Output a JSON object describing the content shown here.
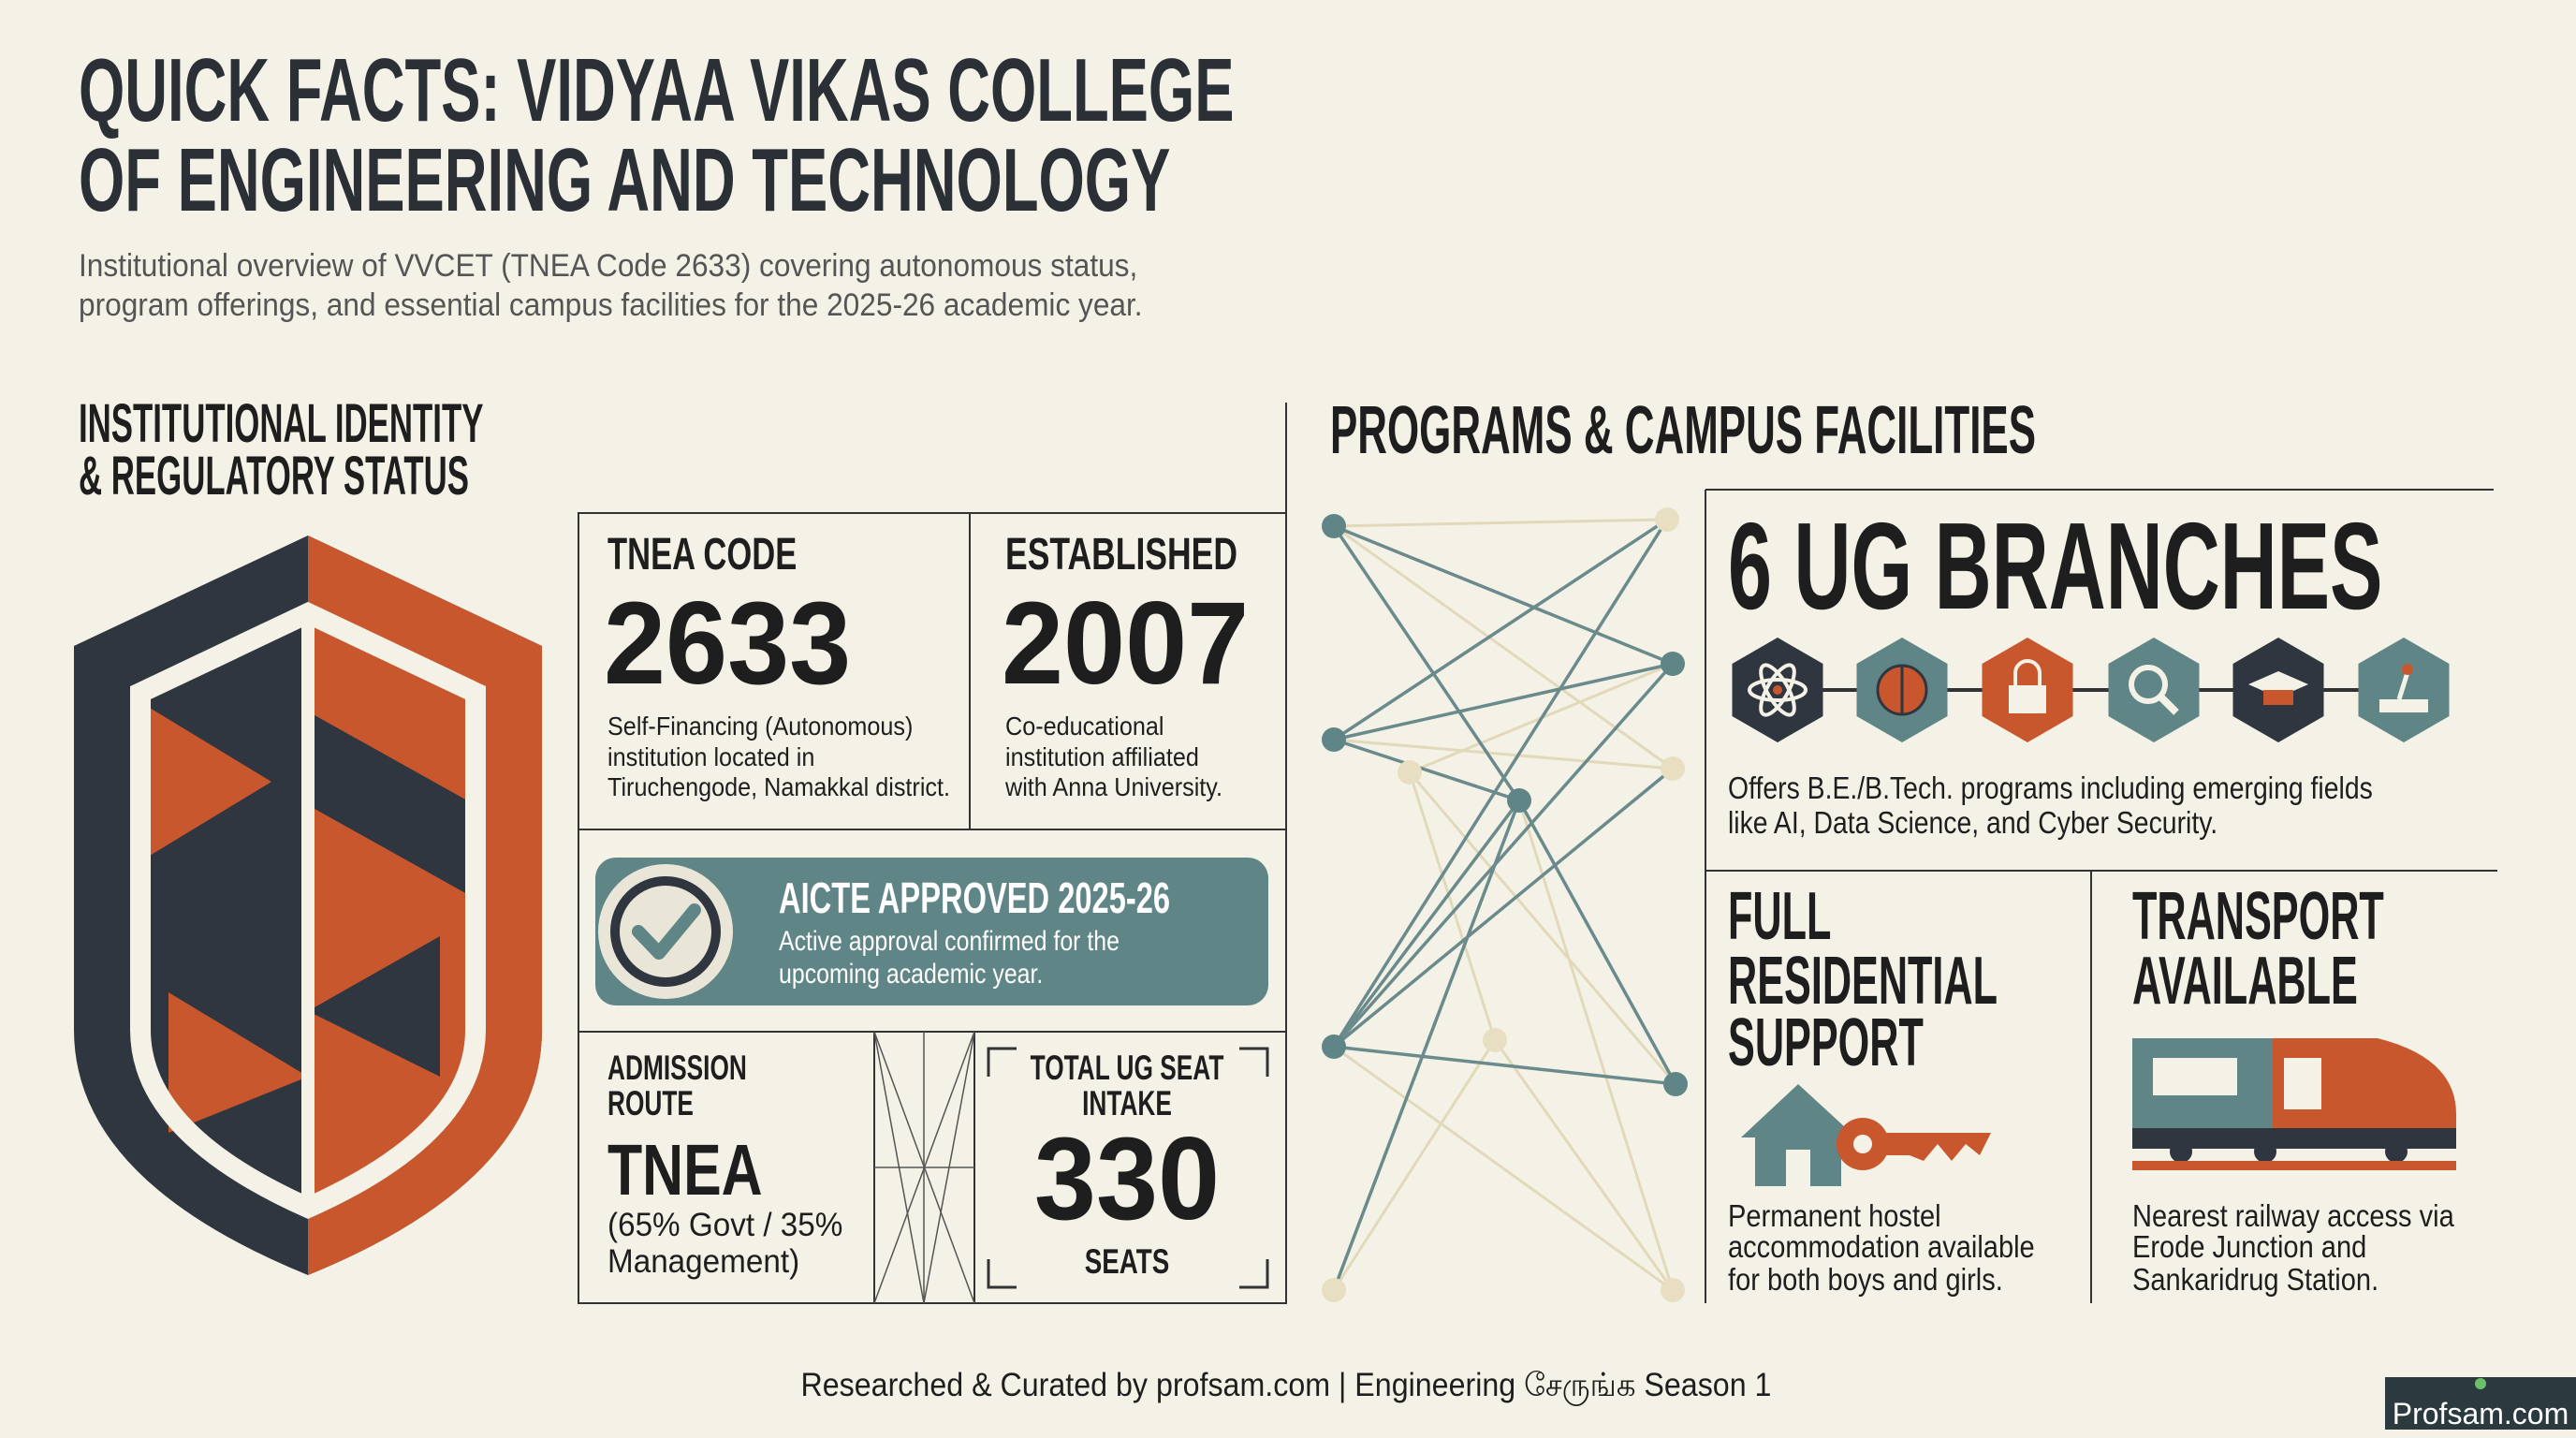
{
  "header": {
    "title": [
      "QUICK FACTS: VIDYAA VIKAS COLLEGE",
      "OF ENGINEERING AND TECHNOLOGY"
    ],
    "subtitle": [
      "Institutional overview of VVCET (TNEA Code 2633) covering autonomous status,",
      "program offerings, and essential campus facilities for the 2025-26 academic year."
    ]
  },
  "left_section": {
    "heading": [
      "INSTITUTIONAL IDENTITY",
      "& REGULATORY STATUS"
    ],
    "tnea_code": {
      "label": "TNEA CODE",
      "value": "2633",
      "description": [
        "Self-Financing (Autonomous)",
        "institution located in",
        "Tiruchengode, Namakkal district."
      ]
    },
    "established": {
      "label": "ESTABLISHED",
      "value": "2007",
      "description": [
        "Co-educational",
        "institution affiliated",
        "with Anna University."
      ]
    },
    "aicte": {
      "title": "AICTE APPROVED 2025-26",
      "description": [
        "Active approval confirmed for the",
        "upcoming academic year."
      ]
    },
    "admission": {
      "label": [
        "ADMISSION",
        "ROUTE"
      ],
      "value": "TNEA",
      "description": [
        "(65% Govt / 35%",
        "Management)"
      ]
    },
    "seat_intake": {
      "label": [
        "TOTAL UG SEAT",
        "INTAKE"
      ],
      "value": "330",
      "unit": "SEATS"
    }
  },
  "right_section": {
    "heading": "PROGRAMS & CAMPUS FACILITIES",
    "branches": {
      "title": "6 UG BRANCHES",
      "description": [
        "Offers B.E./B.Tech. programs including emerging fields",
        "like AI, Data Science, and Cyber Security."
      ]
    },
    "residential": {
      "title": [
        "FULL",
        "RESIDENTIAL",
        "SUPPORT"
      ],
      "description": [
        "Permanent hostel",
        "accommodation available",
        "for both boys and girls."
      ]
    },
    "transport": {
      "title": [
        "TRANSPORT",
        "AVAILABLE"
      ],
      "description": [
        "Nearest railway access via",
        "Erode Junction and",
        "Sankaridrug Station."
      ]
    }
  },
  "footer": {
    "credit": "Researched & Curated by profsam.com | Engineering சேருங்க Season 1",
    "badge": "Profsam.com"
  }
}
